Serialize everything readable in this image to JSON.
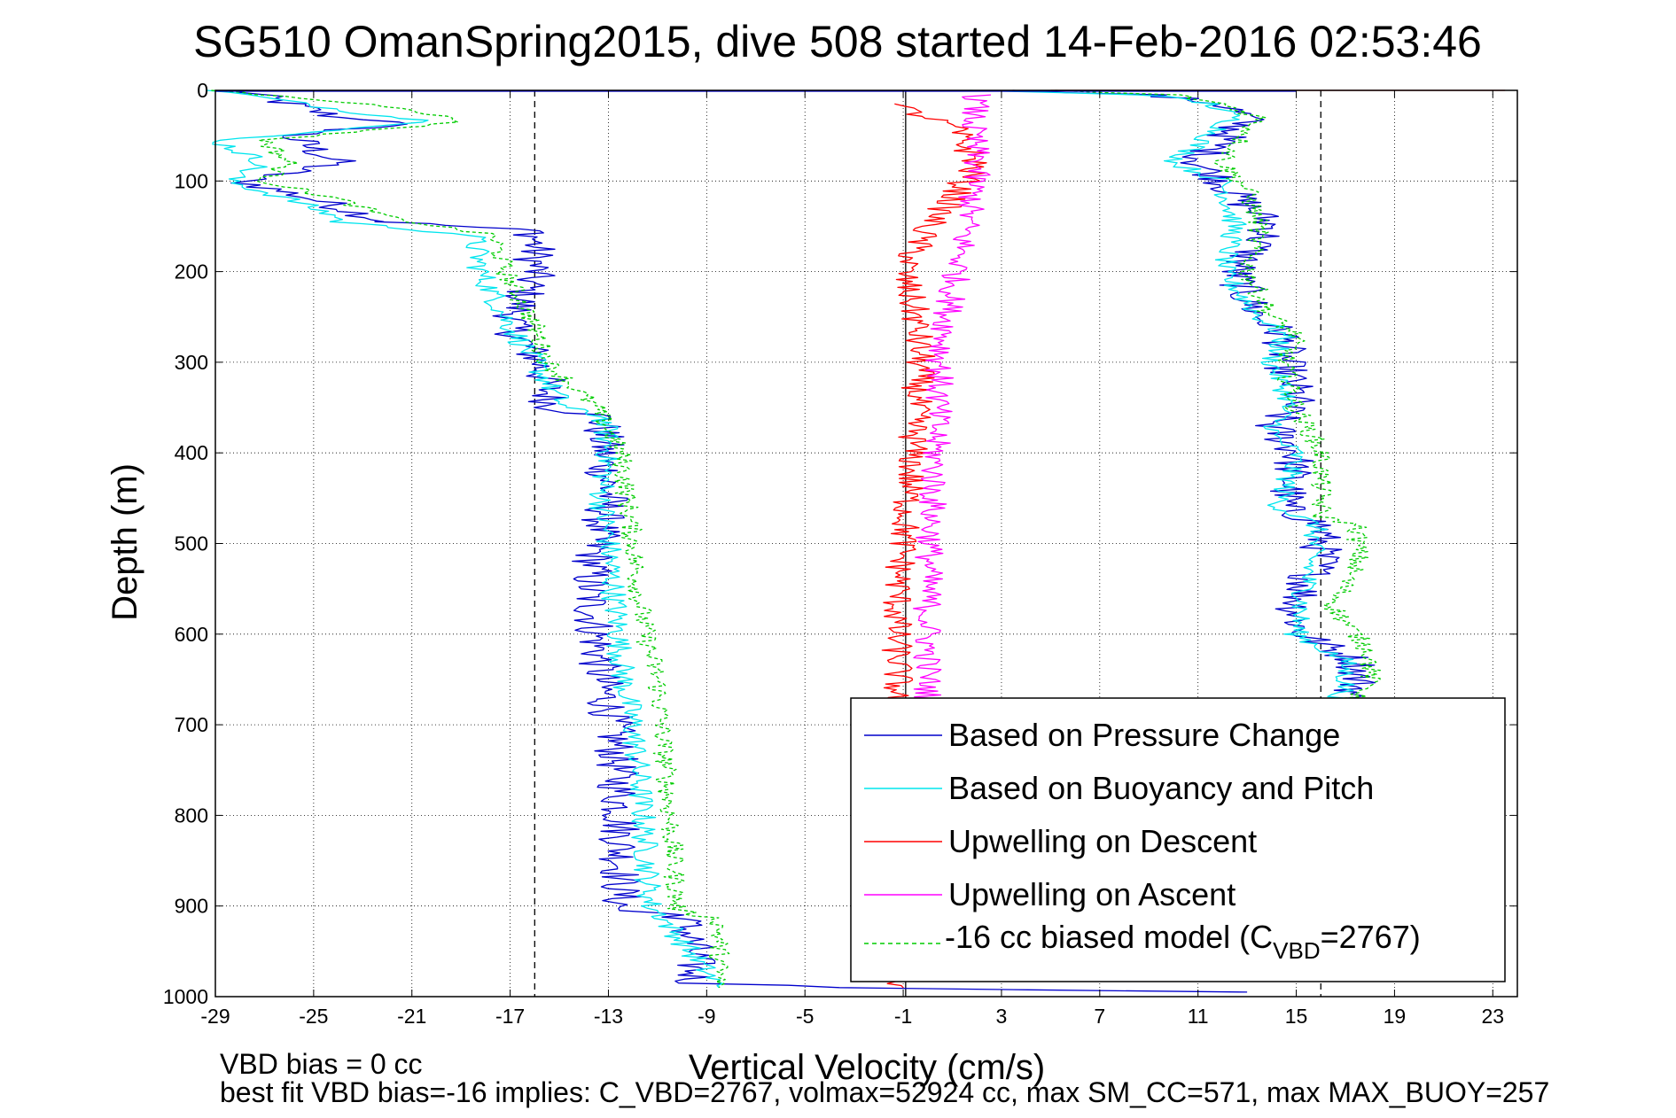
{
  "chart_data": {
    "type": "line",
    "title": "SG510 OmanSpring2015, dive 508 started 14-Feb-2016 02:53:46",
    "xlabel": "Vertical Velocity (cm/s)",
    "ylabel": "Depth (m)",
    "xlim": [
      -29,
      24
    ],
    "ylim": [
      1000,
      0
    ],
    "y_reversed": true,
    "grid": true,
    "x_ticks": [
      "-29",
      "-25",
      "-21",
      "-17",
      "-13",
      "-9",
      "-5",
      "-1",
      "3",
      "7",
      "11",
      "15",
      "19",
      "23"
    ],
    "y_ticks": [
      "0",
      "100",
      "200",
      "300",
      "400",
      "500",
      "600",
      "700",
      "800",
      "900",
      "1000"
    ],
    "reference_lines": [
      {
        "x": -16,
        "style": "dashed"
      },
      {
        "x": -0.9,
        "style": "solid"
      },
      {
        "x": 16,
        "style": "dashed"
      }
    ],
    "legend": {
      "placement": "lower-right",
      "entries": [
        {
          "label": "Based on Pressure Change",
          "color": "#0000cc",
          "style": "solid"
        },
        {
          "label": "Based on Buoyancy and Pitch",
          "color": "#00e5ee",
          "style": "solid"
        },
        {
          "label": "Upwelling on Descent",
          "color": "#ff0000",
          "style": "solid"
        },
        {
          "label": "Upwelling on Ascent",
          "color": "#ff00ff",
          "style": "solid"
        },
        {
          "label_prefix": "-16 cc biased model (C",
          "label_sub": "VBD",
          "label_suffix": "=2767)",
          "color": "#00cc00",
          "style": "dashed"
        }
      ]
    },
    "series": [
      {
        "name": "Based on Pressure Change",
        "color": "#0000cc",
        "branch": "descent",
        "noise": 0.9,
        "x": [
          -28,
          -24,
          -21,
          -26,
          -24,
          -28,
          -25,
          -22,
          -22,
          -16,
          -16,
          -17,
          -15.8,
          -15.3,
          -13.3,
          -13.2,
          -13,
          -13.5,
          -13.8,
          -13.5,
          -13.3,
          -12.8,
          -12.5,
          -12.5,
          -10,
          -9.5,
          -9.5,
          -3,
          13
        ],
        "y": [
          0,
          30,
          35,
          50,
          80,
          100,
          120,
          145,
          145,
          155,
          200,
          260,
          300,
          350,
          360,
          400,
          450,
          500,
          550,
          600,
          650,
          700,
          800,
          905,
          910,
          950,
          985,
          990,
          995
        ]
      },
      {
        "name": "Based on Pressure Change",
        "color": "#0000cc",
        "branch": "ascent",
        "noise": 0.9,
        "x": [
          3,
          9,
          12,
          13,
          11,
          12,
          12.5,
          14,
          12.5,
          13,
          13.5,
          14.5,
          14.5,
          15,
          14,
          15,
          14.5,
          16,
          16,
          15.5,
          15,
          15.2,
          17.5,
          17.5,
          17,
          16
        ],
        "y": [
          0,
          5,
          15,
          30,
          80,
          100,
          115,
          150,
          200,
          230,
          250,
          270,
          300,
          340,
          370,
          400,
          460,
          480,
          520,
          540,
          570,
          600,
          630,
          660,
          670,
          680
        ]
      },
      {
        "name": "Based on Buoyancy and Pitch",
        "color": "#00e5ee",
        "branch": "descent",
        "noise": 0.55,
        "x": [
          -29,
          -23,
          -20,
          -29,
          -27,
          -28.5,
          -26,
          -24,
          -24,
          -18.5,
          -18.2,
          -17,
          -16,
          -14.8,
          -13.2,
          -13,
          -13.3,
          -13,
          -12.8,
          -12.6,
          -12.4,
          -12.0,
          -11.6,
          -11.3,
          -11,
          -8.5
        ],
        "y": [
          0,
          25,
          35,
          55,
          80,
          100,
          120,
          140,
          145,
          160,
          200,
          260,
          300,
          350,
          360,
          400,
          450,
          500,
          550,
          600,
          650,
          700,
          800,
          900,
          905,
          990
        ]
      },
      {
        "name": "Based on Buoyancy and Pitch",
        "color": "#00e5ee",
        "branch": "ascent",
        "noise": 0.5,
        "x": [
          2,
          9,
          11.5,
          12.5,
          10,
          12,
          12.5,
          12,
          13.5,
          14.5,
          14,
          14.7,
          14,
          15,
          14.3,
          15.8,
          15.6,
          15.2,
          15,
          17,
          17,
          16.5
        ],
        "y": [
          0,
          5,
          15,
          30,
          80,
          100,
          150,
          200,
          250,
          270,
          300,
          340,
          380,
          400,
          460,
          480,
          520,
          570,
          600,
          630,
          660,
          680
        ]
      },
      {
        "name": "-16 cc biased model (CVBD=2767)",
        "color": "#00cc00",
        "branch": "descent",
        "noise": 0.45,
        "dashed": true,
        "x": [
          -29,
          -21,
          -19,
          -27,
          -26,
          -27,
          -24,
          -22,
          -21,
          -17.7,
          -17.2,
          -16,
          -15.5,
          -13.5,
          -12.5,
          -12,
          -11.8,
          -11.5,
          -11,
          -10.5,
          -10.2,
          -8.5,
          -8.5
        ],
        "y": [
          0,
          20,
          35,
          55,
          80,
          100,
          120,
          140,
          145,
          160,
          200,
          260,
          300,
          350,
          400,
          500,
          550,
          600,
          650,
          800,
          905,
          915,
          990
        ]
      },
      {
        "name": "-16 cc biased model (CVBD=2767)",
        "color": "#00cc00",
        "branch": "ascent",
        "noise": 0.45,
        "dashed": true,
        "x": [
          5,
          10,
          12,
          13.5,
          12,
          13,
          13.5,
          13,
          14,
          15,
          14.5,
          15,
          16,
          16,
          17.5,
          17.5,
          16.5,
          18,
          18,
          17
        ],
        "y": [
          0,
          5,
          15,
          30,
          80,
          110,
          150,
          200,
          250,
          270,
          300,
          350,
          400,
          470,
          480,
          520,
          570,
          620,
          660,
          675
        ]
      },
      {
        "name": "Upwelling on Descent",
        "color": "#ff0000",
        "noise": 0.65,
        "x": [
          -1.5,
          1,
          2,
          1,
          0,
          -1,
          -0.5,
          -0.3,
          -0.5,
          -0.6,
          -0.8,
          -1.0,
          -1.2,
          -1.3,
          -1.2,
          -1.3,
          -1.2,
          -1.0
        ],
        "y": [
          15,
          40,
          80,
          120,
          150,
          200,
          250,
          300,
          350,
          400,
          450,
          500,
          550,
          600,
          640,
          670,
          680,
          990
        ]
      },
      {
        "name": "Upwelling on Ascent",
        "color": "#ff00ff",
        "noise": 0.6,
        "x": [
          2,
          1.8,
          2,
          1.8,
          1.5,
          1.2,
          0.8,
          0.5,
          0.4,
          0.3,
          0.2,
          0.1,
          0,
          0,
          0,
          0
        ],
        "y": [
          5,
          40,
          80,
          120,
          160,
          200,
          250,
          300,
          350,
          400,
          450,
          500,
          550,
          600,
          650,
          680
        ]
      }
    ],
    "tail_segments": [
      {
        "color": "#ff0000",
        "x": [
          5,
          23.5
        ],
        "y": [
          0,
          0
        ]
      },
      {
        "color": "#00cc00",
        "x": [
          -29,
          15
        ],
        "y": [
          0.5,
          0.5
        ]
      },
      {
        "color": "#0000cc",
        "x": [
          -29,
          15
        ],
        "y": [
          1,
          1
        ]
      }
    ]
  },
  "notes": {
    "line1": "VBD bias = 0 cc",
    "line2": "best fit VBD bias=-16 implies: C_VBD=2767, volmax=52924 cc, max SM_CC=571, max MAX_BUOY=257"
  }
}
